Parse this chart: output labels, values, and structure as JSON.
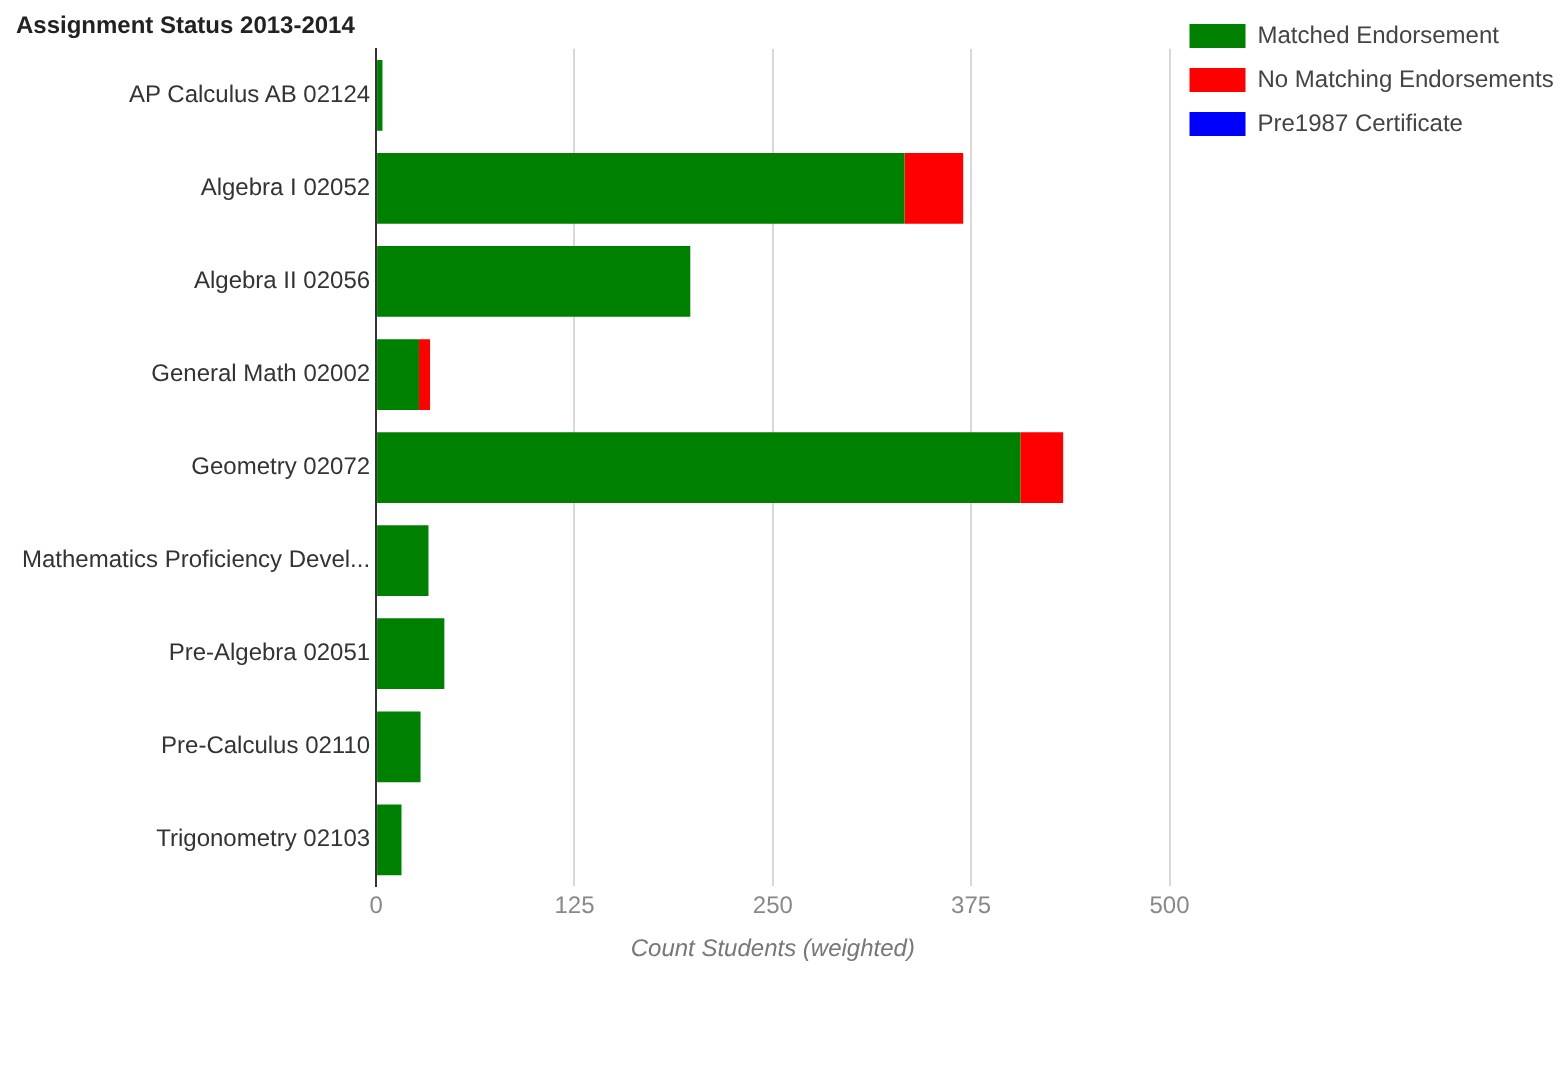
{
  "chart_data": {
    "type": "bar",
    "orientation": "horizontal",
    "stacked": true,
    "title": "Assignment Status 2013-2014",
    "xlabel": "Count Students (weighted)",
    "categories": [
      "AP Calculus AB 02124",
      "Algebra I 02052",
      "Algebra II 02056",
      "General Math 02002",
      "Geometry 02072",
      "Mathematics Proficiency Devel...",
      "Pre-Algebra 02051",
      "Pre-Calculus 02110",
      "Trigonometry 02103"
    ],
    "series": [
      {
        "name": "Matched Endorsement",
        "color": "#008000",
        "values": [
          4,
          333,
          198,
          27,
          406,
          33,
          43,
          28,
          16
        ]
      },
      {
        "name": "No Matching Endorsements",
        "color": "#ff0000",
        "values": [
          0,
          37,
          0,
          7,
          27,
          0,
          0,
          0,
          0
        ]
      },
      {
        "name": "Pre1987 Certificate",
        "color": "#0000ff",
        "values": [
          0,
          0,
          0,
          0,
          0,
          0,
          0,
          0,
          0
        ]
      }
    ],
    "xlim": [
      0,
      500
    ],
    "xticks": [
      0,
      125,
      250,
      375,
      500
    ],
    "grid": "x",
    "legend": "top right"
  }
}
